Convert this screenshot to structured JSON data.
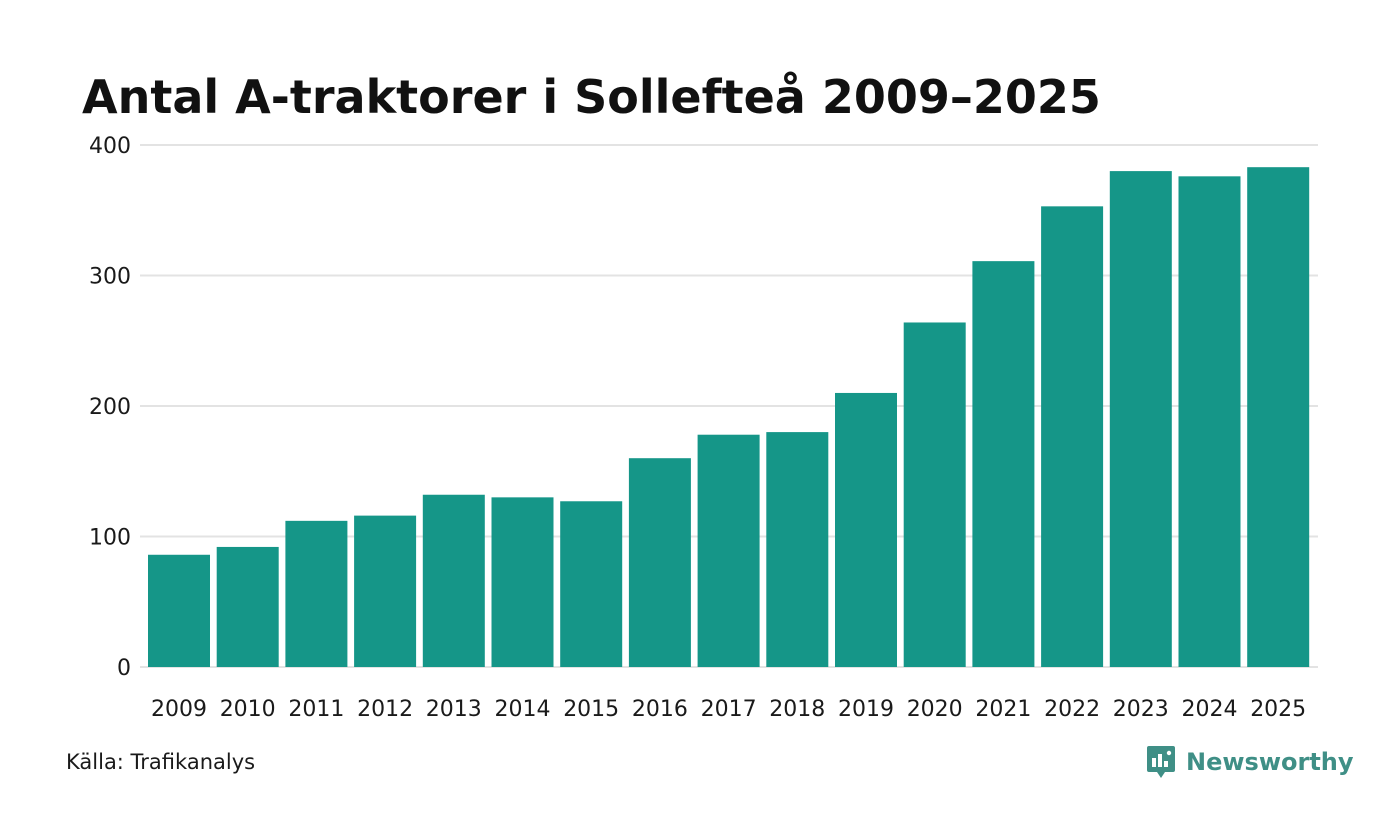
{
  "colors": {
    "bar": "#159688",
    "grid": "#e3e3e3",
    "brand": "#3f8f86"
  },
  "chart_data": {
    "type": "bar",
    "title": "Antal A-traktorer i Sollefteå 2009–2025",
    "categories": [
      "2009",
      "2010",
      "2011",
      "2012",
      "2013",
      "2014",
      "2015",
      "2016",
      "2017",
      "2018",
      "2019",
      "2020",
      "2021",
      "2022",
      "2023",
      "2024",
      "2025"
    ],
    "values": [
      86,
      92,
      112,
      116,
      132,
      130,
      127,
      160,
      178,
      180,
      210,
      264,
      311,
      353,
      380,
      376,
      383
    ],
    "ylim": [
      0,
      400
    ],
    "yticks": [
      0,
      100,
      200,
      300,
      400
    ],
    "xlabel": "",
    "ylabel": "",
    "grid": true
  },
  "footer": {
    "source": "Källa: Trafikanalys",
    "brand": "Newsworthy",
    "brand_icon": "newsworthy-logo-icon"
  }
}
